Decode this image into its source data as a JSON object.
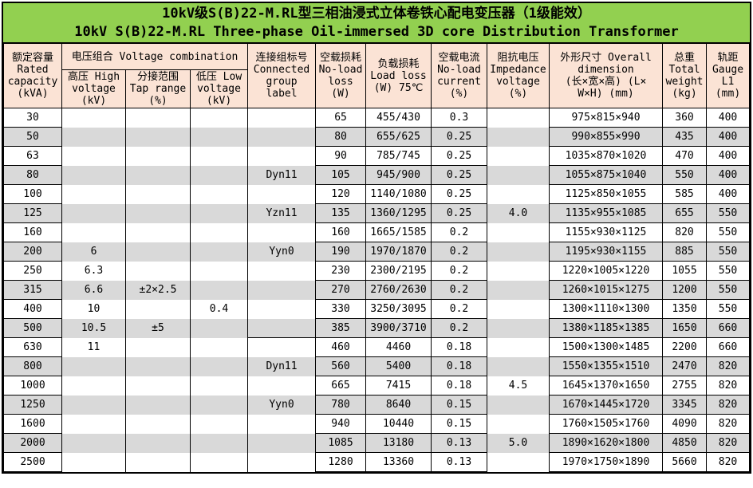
{
  "title": {
    "line1": "10kV级S(B)22-M.RL型三相油浸式立体卷铁心配电变压器（1级能效）",
    "line2": "10kV S(B)22-M.RL Three-phase Oil-immersed 3D core Distribution Transformer"
  },
  "colors": {
    "title_bg": "#92D050",
    "header_bg": "#FBE3D5",
    "row_stripe": "#D9D9D9",
    "border": "#000000"
  },
  "table": {
    "headers": {
      "capacity": "额定容量\nRated\ncapacity\n(kVA)",
      "voltage_combination": "电压组合 Voltage combination",
      "hv": "高压 High\nvoltage\n(kV)",
      "tap": "分接范围\nTap range\n(%)",
      "lv": "低压 Low\nvoltage\n(kV)",
      "conn": "连接组标号\nConnected\ngroup\nlabel",
      "noload_loss": "空载损耗\nNo-load\nloss\n(W)",
      "load_loss": "负载损耗\nLoad loss\n(W) 75℃",
      "noload_current": "空载电流\nNo-load\ncurrent\n(%)",
      "impedance": "阻抗电压\nImpedance\nvoltage\n(%)",
      "dimension": "外形尺寸 Overall\ndimension\n(长×宽×高) (L×\nW×H) (mm)",
      "weight": "总重\nTotal\nweight\n(kg)",
      "gauge": "轨距\nGauge\nL1\n(mm)"
    },
    "column_keys": [
      "capacity",
      "hv",
      "tap",
      "lv",
      "conn",
      "noload_loss",
      "load_loss",
      "noload_current",
      "impedance",
      "dimension",
      "weight",
      "gauge"
    ],
    "rows": [
      {
        "capacity": "30",
        "hv": "",
        "tap": "",
        "lv": "",
        "conn": "",
        "noload_loss": "65",
        "load_loss": "455/430",
        "noload_current": "0.3",
        "impedance": "",
        "dimension": "975×815×940",
        "weight": "360",
        "gauge": "400"
      },
      {
        "capacity": "50",
        "hv": "",
        "tap": "",
        "lv": "",
        "conn": "",
        "noload_loss": "80",
        "load_loss": "655/625",
        "noload_current": "0.25",
        "impedance": "",
        "dimension": "990×855×990",
        "weight": "435",
        "gauge": "400"
      },
      {
        "capacity": "63",
        "hv": "",
        "tap": "",
        "lv": "",
        "conn": "",
        "noload_loss": "90",
        "load_loss": "785/745",
        "noload_current": "0.25",
        "impedance": "",
        "dimension": "1035×870×1020",
        "weight": "470",
        "gauge": "400"
      },
      {
        "capacity": "80",
        "hv": "",
        "tap": "",
        "lv": "",
        "conn": "Dyn11",
        "noload_loss": "105",
        "load_loss": "945/900",
        "noload_current": "0.25",
        "impedance": "",
        "dimension": "1055×875×1040",
        "weight": "550",
        "gauge": "400"
      },
      {
        "capacity": "100",
        "hv": "",
        "tap": "",
        "lv": "",
        "conn": "",
        "noload_loss": "120",
        "load_loss": "1140/1080",
        "noload_current": "0.25",
        "impedance": "",
        "dimension": "1125×850×1055",
        "weight": "585",
        "gauge": "400"
      },
      {
        "capacity": "125",
        "hv": "",
        "tap": "",
        "lv": "",
        "conn": "Yzn11",
        "noload_loss": "135",
        "load_loss": "1360/1295",
        "noload_current": "0.25",
        "impedance": "4.0",
        "dimension": "1135×955×1085",
        "weight": "655",
        "gauge": "550"
      },
      {
        "capacity": "160",
        "hv": "",
        "tap": "",
        "lv": "",
        "conn": "",
        "noload_loss": "160",
        "load_loss": "1665/1585",
        "noload_current": "0.2",
        "impedance": "",
        "dimension": "1155×930×1125",
        "weight": "820",
        "gauge": "550"
      },
      {
        "capacity": "200",
        "hv": "6",
        "tap": "",
        "lv": "",
        "conn": "Yyn0",
        "noload_loss": "190",
        "load_loss": "1970/1870",
        "noload_current": "0.2",
        "impedance": "",
        "dimension": "1195×930×1155",
        "weight": "885",
        "gauge": "550"
      },
      {
        "capacity": "250",
        "hv": "6.3",
        "tap": "",
        "lv": "",
        "conn": "",
        "noload_loss": "230",
        "load_loss": "2300/2195",
        "noload_current": "0.2",
        "impedance": "",
        "dimension": "1220×1005×1220",
        "weight": "1055",
        "gauge": "550"
      },
      {
        "capacity": "315",
        "hv": "6.6",
        "tap": "±2×2.5",
        "lv": "",
        "conn": "",
        "noload_loss": "270",
        "load_loss": "2760/2630",
        "noload_current": "0.2",
        "impedance": "",
        "dimension": "1260×1015×1275",
        "weight": "1200",
        "gauge": "550"
      },
      {
        "capacity": "400",
        "hv": "10",
        "tap": "",
        "lv": "0.4",
        "conn": "",
        "noload_loss": "330",
        "load_loss": "3250/3095",
        "noload_current": "0.2",
        "impedance": "",
        "dimension": "1300×1110×1300",
        "weight": "1350",
        "gauge": "550"
      },
      {
        "capacity": "500",
        "hv": "10.5",
        "tap": "±5",
        "lv": "",
        "conn": "",
        "noload_loss": "385",
        "load_loss": "3900/3710",
        "noload_current": "0.2",
        "impedance": "",
        "dimension": "1380×1185×1385",
        "weight": "1650",
        "gauge": "660"
      },
      {
        "capacity": "630",
        "hv": "11",
        "tap": "",
        "lv": "",
        "conn": "",
        "group_break": true,
        "noload_loss": "460",
        "load_loss": "4460",
        "noload_current": "0.18",
        "impedance": "",
        "dimension": "1500×1300×1485",
        "weight": "2200",
        "gauge": "660"
      },
      {
        "capacity": "800",
        "hv": "",
        "tap": "",
        "lv": "",
        "conn": "Dyn11",
        "noload_loss": "560",
        "load_loss": "5400",
        "noload_current": "0.18",
        "impedance": "",
        "dimension": "1550×1355×1510",
        "weight": "2470",
        "gauge": "820"
      },
      {
        "capacity": "1000",
        "hv": "",
        "tap": "",
        "lv": "",
        "conn": "",
        "noload_loss": "665",
        "load_loss": "7415",
        "noload_current": "0.18",
        "impedance": "4.5",
        "dimension": "1645×1370×1650",
        "weight": "2755",
        "gauge": "820"
      },
      {
        "capacity": "1250",
        "hv": "",
        "tap": "",
        "lv": "",
        "conn": "Yyn0",
        "noload_loss": "780",
        "load_loss": "8640",
        "noload_current": "0.15",
        "impedance": "",
        "dimension": "1670×1445×1720",
        "weight": "3345",
        "gauge": "820"
      },
      {
        "capacity": "1600",
        "hv": "",
        "tap": "",
        "lv": "",
        "conn": "",
        "noload_loss": "940",
        "load_loss": "10440",
        "noload_current": "0.15",
        "impedance": "",
        "dimension": "1760×1505×1760",
        "weight": "4090",
        "gauge": "820"
      },
      {
        "capacity": "2000",
        "hv": "",
        "tap": "",
        "lv": "",
        "conn": "",
        "noload_loss": "1085",
        "load_loss": "13180",
        "noload_current": "0.13",
        "impedance": "5.0",
        "dimension": "1890×1620×1800",
        "weight": "4850",
        "gauge": "820"
      },
      {
        "capacity": "2500",
        "hv": "",
        "tap": "",
        "lv": "",
        "conn": "",
        "noload_loss": "1280",
        "load_loss": "13360",
        "noload_current": "0.13",
        "impedance": "",
        "dimension": "1970×1750×1890",
        "weight": "5660",
        "gauge": "820"
      }
    ]
  }
}
